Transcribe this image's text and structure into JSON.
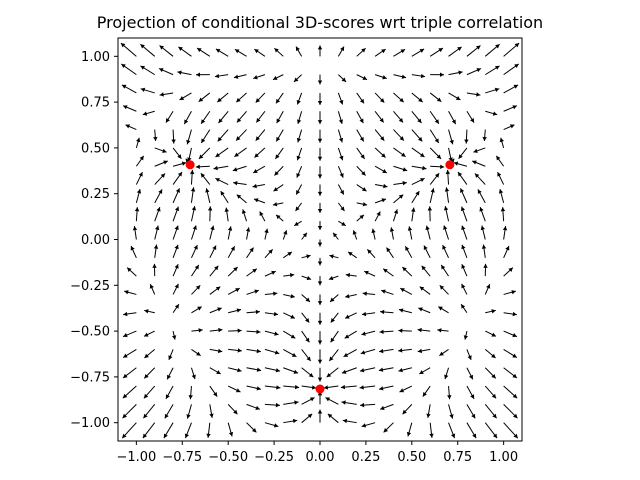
{
  "chart_data": {
    "type": "quiver",
    "title": "Projection of conditional 3D-scores wrt triple correlation",
    "xlabel": "",
    "ylabel": "",
    "xlim": [
      -1.1,
      1.1
    ],
    "ylim": [
      -1.1,
      1.1
    ],
    "xticks": [
      -1.0,
      -0.75,
      -0.5,
      -0.25,
      0.0,
      0.25,
      0.5,
      0.75,
      1.0
    ],
    "yticks": [
      -1.0,
      -0.75,
      -0.5,
      -0.25,
      0.0,
      0.25,
      0.5,
      0.75,
      1.0
    ],
    "xtick_labels": [
      "−1.00",
      "−0.75",
      "−0.50",
      "−0.25",
      "0.00",
      "0.25",
      "0.50",
      "0.75",
      "1.00"
    ],
    "ytick_labels": [
      "−1.00",
      "−0.75",
      "−0.50",
      "−0.25",
      "0.00",
      "0.25",
      "0.50",
      "0.75",
      "1.00"
    ],
    "grid": false,
    "quiver": {
      "x_range": [
        -1.0,
        1.0
      ],
      "y_range": [
        -1.0,
        1.0
      ],
      "n": 21,
      "color": "#000000"
    },
    "points": [
      {
        "x": -0.707,
        "y": 0.408
      },
      {
        "x": 0.707,
        "y": 0.408
      },
      {
        "x": 0.0,
        "y": -0.816
      }
    ],
    "point_color": "#ff0000"
  }
}
